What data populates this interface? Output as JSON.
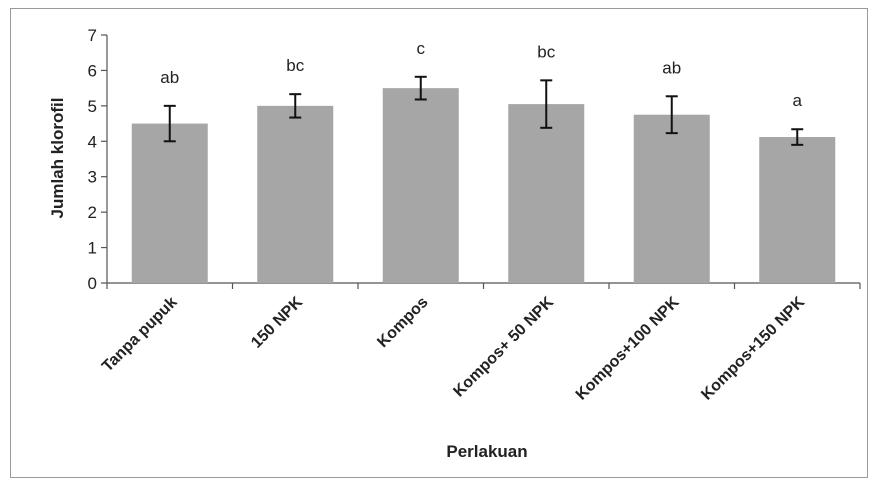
{
  "chart_data": {
    "type": "bar",
    "title": "",
    "xlabel": "Perlakuan",
    "ylabel": "Jumlah klorofil",
    "ylim": [
      0,
      7
    ],
    "yticks": [
      0,
      1,
      2,
      3,
      4,
      5,
      6,
      7
    ],
    "grid": false,
    "categories": [
      "Tanpa pupuk",
      "150 NPK",
      "Kompos",
      "Kompos+ 50 NPK",
      "Kompos+100 NPK",
      "Kompos+150 NPK"
    ],
    "series": [
      {
        "values": [
          4.5,
          5.0,
          5.5,
          5.05,
          4.75,
          4.12
        ],
        "error": [
          0.5,
          0.33,
          0.32,
          0.67,
          0.52,
          0.22
        ],
        "significance_labels": [
          "ab",
          "bc",
          "c",
          "bc",
          "ab",
          "a"
        ]
      }
    ],
    "colors": {
      "bar": "#a6a6a6",
      "axis": "#555555",
      "error_bar": "#111111"
    }
  }
}
